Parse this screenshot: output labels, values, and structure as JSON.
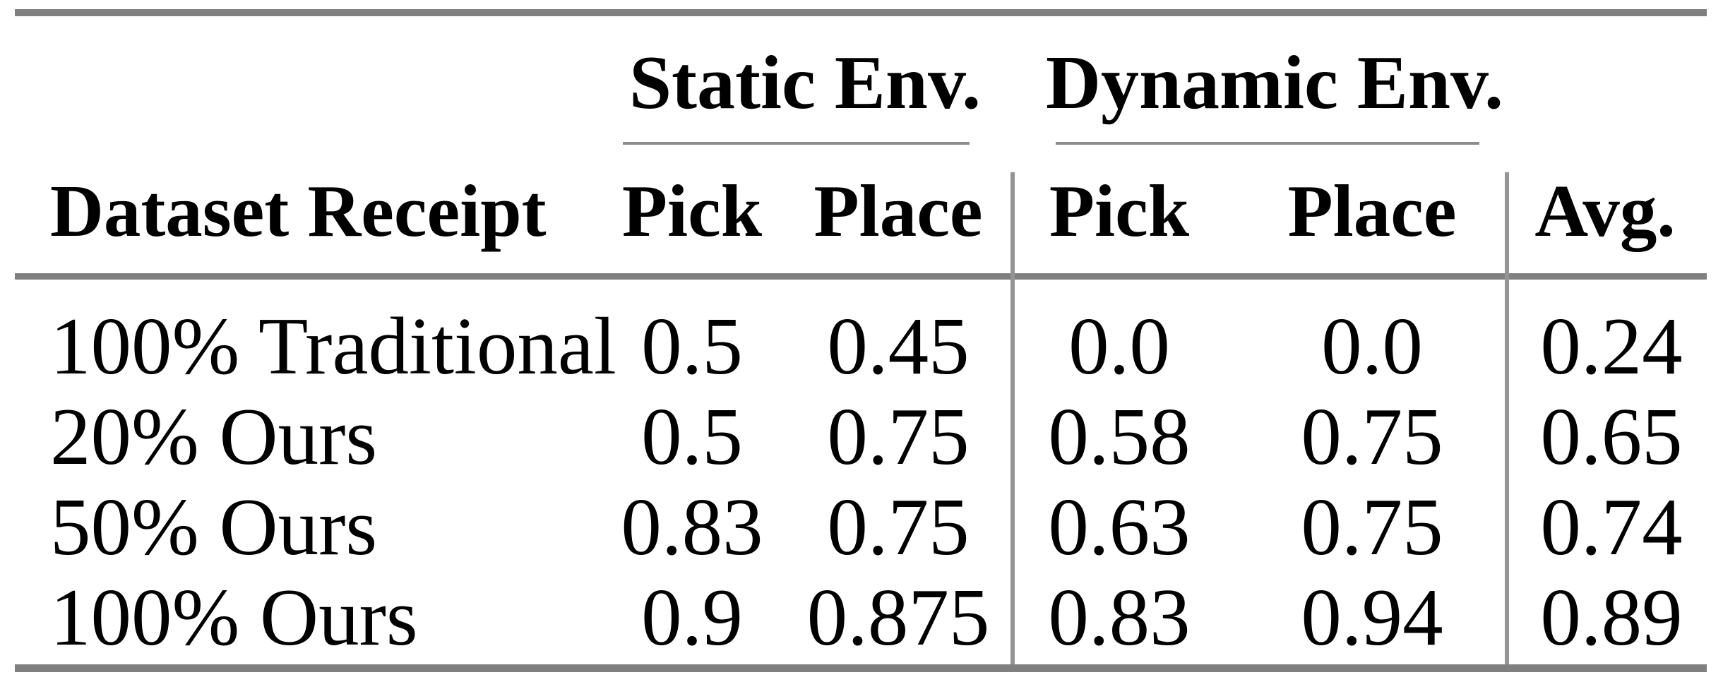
{
  "table": {
    "group_headers": {
      "static": "Static Env.",
      "dynamic": "Dynamic Env."
    },
    "column_headers": {
      "row_label": "Dataset Receipt",
      "static_pick": "Pick",
      "static_place": "Place",
      "dynamic_pick": "Pick",
      "dynamic_place": "Place",
      "avg": "Avg."
    },
    "rows": [
      {
        "label": "100% Traditional",
        "static_pick": "0.5",
        "static_place": "0.45",
        "dynamic_pick": "0.0",
        "dynamic_place": "0.0",
        "avg": "0.24"
      },
      {
        "label": "20% Ours",
        "static_pick": "0.5",
        "static_place": "0.75",
        "dynamic_pick": "0.58",
        "dynamic_place": "0.75",
        "avg": "0.65"
      },
      {
        "label": "50% Ours",
        "static_pick": "0.83",
        "static_place": "0.75",
        "dynamic_pick": "0.63",
        "dynamic_place": "0.75",
        "avg": "0.74"
      },
      {
        "label": "100% Ours",
        "static_pick": "0.9",
        "static_place": "0.875",
        "dynamic_pick": "0.83",
        "dynamic_place": "0.94",
        "avg": "0.89"
      }
    ]
  },
  "colors": {
    "thick_rule": "#7f7f7f",
    "thin_rule": "#8d8d8d",
    "vertical_rule": "#949494",
    "text": "#000000",
    "background": "#ffffff"
  }
}
